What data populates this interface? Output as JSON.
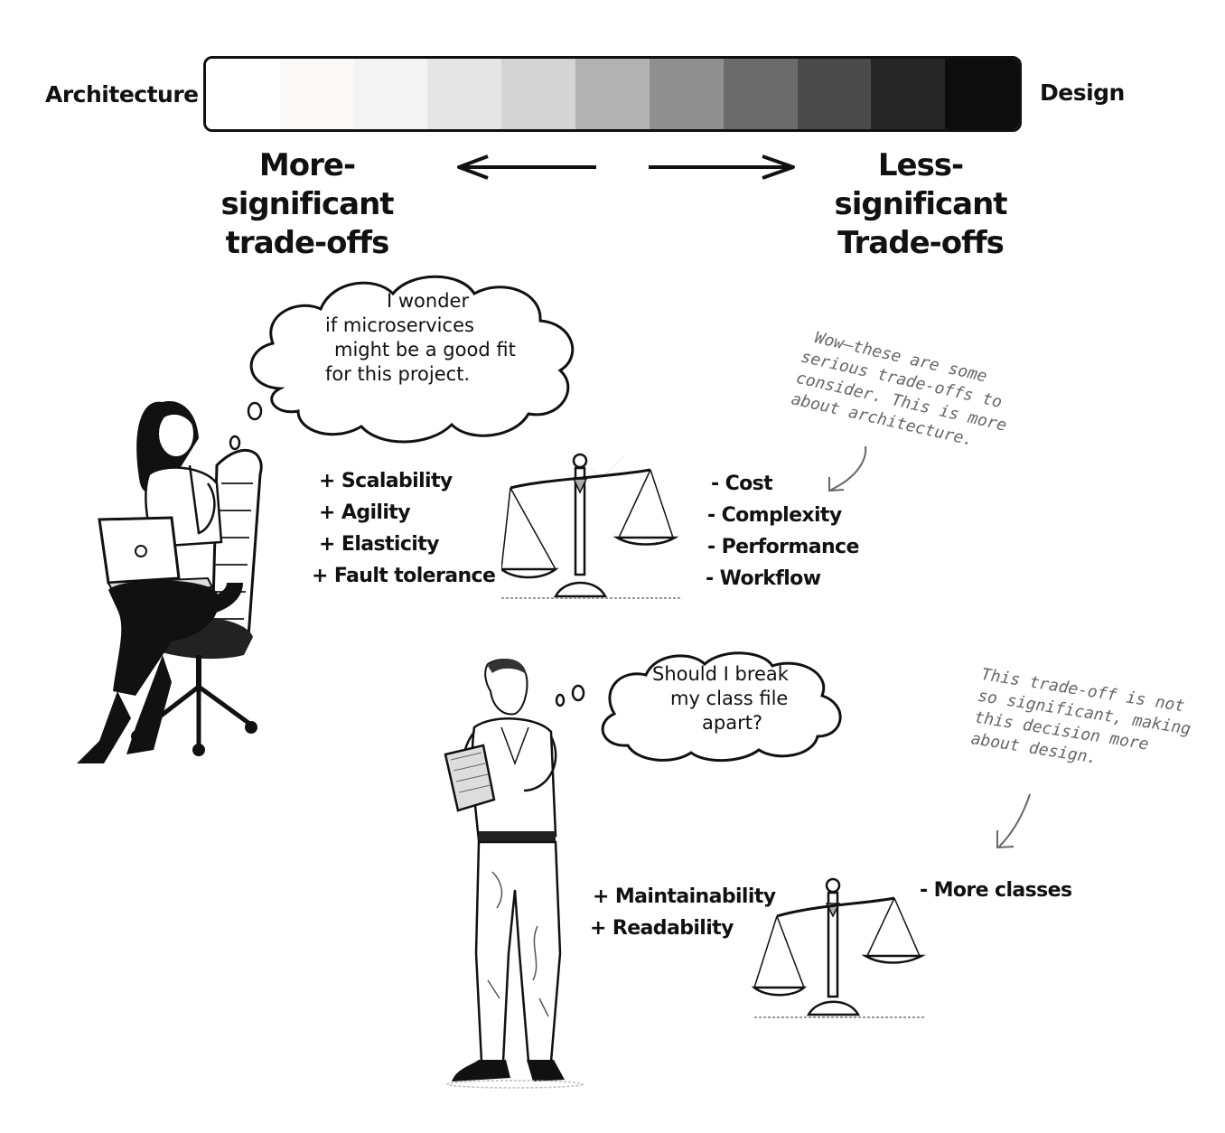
{
  "spectrum": {
    "left_label": "Architecture",
    "right_label": "Design",
    "shades": [
      "#ffffff",
      "#fbf8f8",
      "#f4f4f4",
      "#e6e6e6",
      "#d4d4d4",
      "#b2b2b2",
      "#8f8f8f",
      "#6b6b6b",
      "#4a4a4a",
      "#262626",
      "#0d0d0d"
    ]
  },
  "axis": {
    "left_lines": [
      "More-significant",
      "trade-offs"
    ],
    "right_lines": [
      "Less-significant",
      "Trade-offs"
    ]
  },
  "scenario_architecture": {
    "thought_lines": [
      "I wonder",
      "if microservices",
      "might be a good fit",
      "for this project."
    ],
    "pros": [
      "+ Scalability",
      "+ Agility",
      "+ Elasticity",
      "+ Fault tolerance"
    ],
    "cons": [
      "- Cost",
      "- Complexity",
      "- Performance",
      "- Workflow"
    ],
    "note_lines": [
      "Wow—these are some",
      "serious trade-offs to",
      "consider. This is more",
      "about architecture."
    ]
  },
  "scenario_design": {
    "thought_lines": [
      "Should I break",
      "my class file",
      "apart?"
    ],
    "pros": [
      "+ Maintainability",
      "+ Readability"
    ],
    "cons": [
      "- More classes"
    ],
    "note_lines": [
      "This trade-off is not",
      "so significant, making",
      "this decision more",
      "about design."
    ]
  },
  "icons": [
    "woman-architect-illustration",
    "man-developer-illustration",
    "balance-scale-icon",
    "thought-bubble",
    "arrow-icon"
  ]
}
